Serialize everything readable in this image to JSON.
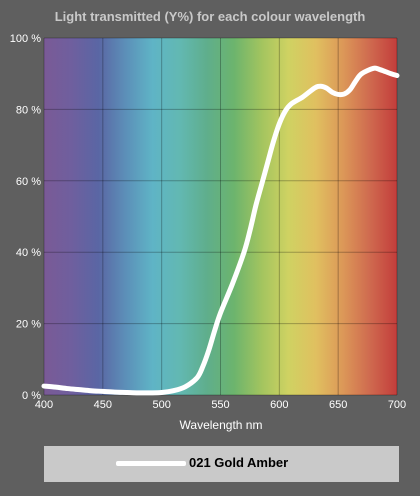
{
  "chart_data": {
    "type": "line",
    "title": "Light transmitted (Y%) for each colour wavelength",
    "xlabel": "Wavelength nm",
    "ylabel": "",
    "xlim": [
      400,
      700
    ],
    "ylim": [
      0,
      100
    ],
    "x_ticks": [
      400,
      450,
      500,
      550,
      600,
      650,
      700
    ],
    "y_ticks": [
      0,
      20,
      40,
      60,
      80,
      100
    ],
    "y_tick_labels": [
      "0 %",
      "20 %",
      "40 %",
      "60 %",
      "80 %",
      "100 %"
    ],
    "grid": true,
    "legend_position": "bottom",
    "line_color": "#ffffff",
    "series": [
      {
        "name": "021 Gold Amber",
        "x": [
          400,
          410,
          420,
          430,
          440,
          450,
          460,
          470,
          480,
          490,
          500,
          510,
          520,
          530,
          535,
          540,
          545,
          550,
          560,
          570,
          575,
          580,
          585,
          590,
          595,
          600,
          605,
          610,
          620,
          630,
          635,
          640,
          645,
          650,
          655,
          660,
          665,
          670,
          680,
          685,
          690,
          695,
          700
        ],
        "y": [
          2.5,
          2.2,
          1.8,
          1.5,
          1.2,
          1.0,
          0.8,
          0.7,
          0.6,
          0.6,
          0.7,
          1.2,
          2.3,
          4.8,
          8.0,
          12.5,
          18.0,
          23.0,
          31.0,
          40.0,
          46.0,
          53.0,
          59.0,
          65.0,
          71.0,
          76.0,
          79.5,
          81.5,
          83.5,
          86.0,
          86.5,
          86.0,
          84.8,
          84.2,
          84.3,
          85.5,
          88.0,
          90.0,
          91.5,
          91.2,
          90.6,
          90.0,
          89.5
        ]
      }
    ]
  },
  "spectrum_colors": [
    "#7a5a96",
    "#6f5f9e",
    "#5a66a4",
    "#5c8fb8",
    "#5fb4c6",
    "#62b8b2",
    "#5fae8c",
    "#6cb46d",
    "#a2c45f",
    "#cfd262",
    "#e0c060",
    "#dc9858",
    "#cf6a4f",
    "#c33d3b"
  ]
}
